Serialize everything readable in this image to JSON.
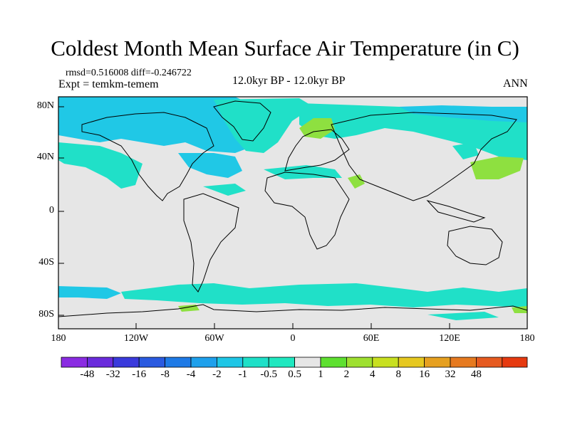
{
  "title": "Coldest Month Mean Surface Air Temperature (in C)",
  "stats": {
    "rmsd_label": "rmsd=",
    "rmsd": "0.516008",
    "diff_label": "diff=",
    "diff": "-0.246722"
  },
  "experiment": "Expt = temkm-temem",
  "period": "12.0kyr BP - 12.0kyr BP",
  "season": "ANN",
  "axes": {
    "y_ticks": [
      "80N",
      "40N",
      "0",
      "40S",
      "80S"
    ],
    "x_ticks": [
      "180",
      "120W",
      "60W",
      "0",
      "60E",
      "120E",
      "180"
    ]
  },
  "colorbar": {
    "labels": [
      "-48",
      "-32",
      "-16",
      "-8",
      "-4",
      "-2",
      "-1",
      "-0.5",
      "0.5",
      "1",
      "2",
      "4",
      "8",
      "16",
      "32",
      "48"
    ],
    "colors": [
      "#8a2be2",
      "#6a2bdc",
      "#3a3adc",
      "#2a5ae0",
      "#1e7ae6",
      "#1ea0ec",
      "#1ec6e6",
      "#1ee0c8",
      "#20e8c0",
      "#e6e6e6",
      "#5ee030",
      "#9ee030",
      "#c8e020",
      "#e6c820",
      "#e6a020",
      "#e67a20",
      "#e65a20",
      "#e63a10"
    ]
  },
  "map": {
    "background_color": "#e6e6e6",
    "anomaly_colors": {
      "cyan": "#20e0c8",
      "blue": "#20c8e6",
      "green": "#8ee040"
    }
  }
}
